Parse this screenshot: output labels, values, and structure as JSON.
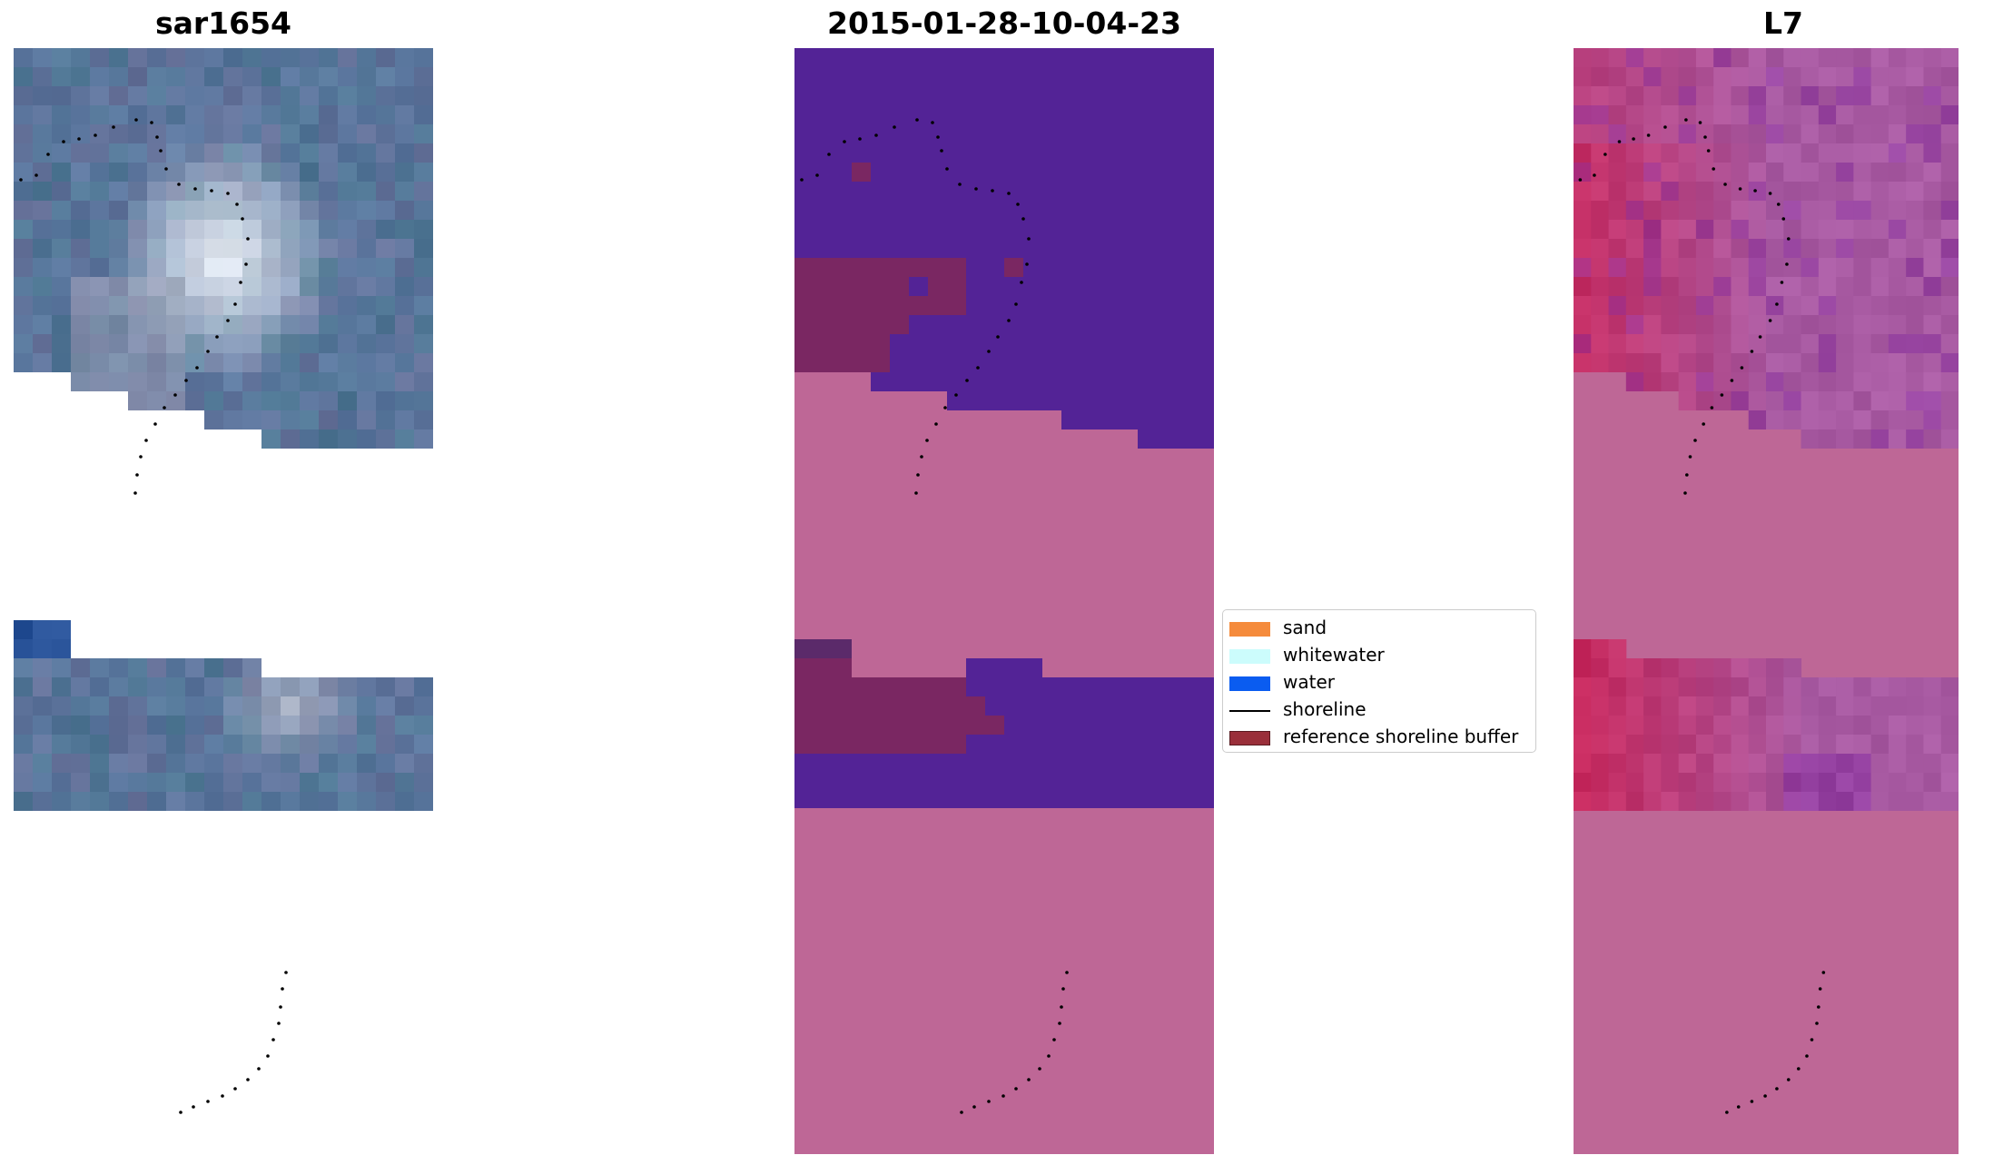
{
  "titles": {
    "left": "sar1654",
    "center": "2015-01-28-10-04-23",
    "right": "L7"
  },
  "legend": {
    "items": [
      {
        "label": "sand",
        "kind": "patch",
        "color": "#f58b3c"
      },
      {
        "label": "whitewater",
        "kind": "patch",
        "color": "#ccfcfc"
      },
      {
        "label": "water",
        "kind": "patch",
        "color": "#0a5cf0"
      },
      {
        "label": "shoreline",
        "kind": "line",
        "color": "#000000"
      },
      {
        "label": "reference shoreline buffer",
        "kind": "patch",
        "color": "#9a2f3a"
      }
    ]
  },
  "colors": {
    "rgb_base": "#5a7aa0",
    "rgb_bright": "#e8eef6",
    "class_water_shaded": "#532396",
    "class_buffer_shaded": "#7a2762",
    "class_nodata": "#be6796",
    "ndwi_base": "#a85aa2",
    "ndwi_land": "#c72a5f",
    "shoreline_dots": "#000000"
  }
}
